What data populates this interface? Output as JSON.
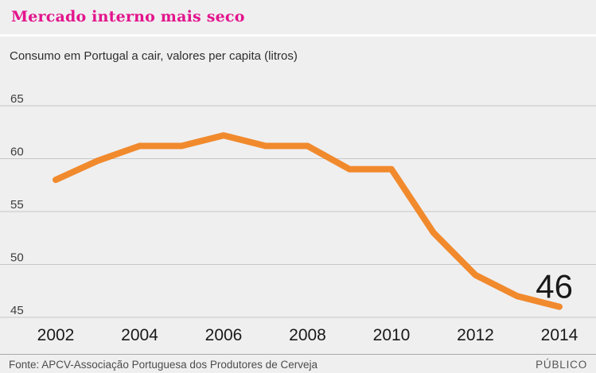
{
  "header": {
    "title": "Mercado interno mais seco",
    "subtitle": "Consumo em Portugal a cair, valores per capita (litros)"
  },
  "chart_data": {
    "type": "line",
    "title": "Mercado interno mais seco",
    "subtitle": "Consumo em Portugal a cair, valores per capita (litros)",
    "series_name": "Consumo per capita (litros)",
    "x": [
      2002,
      2003,
      2004,
      2005,
      2006,
      2007,
      2008,
      2009,
      2010,
      2011,
      2012,
      2013,
      2014
    ],
    "values": [
      58,
      59.8,
      61.2,
      61.2,
      62.2,
      61.2,
      61.2,
      59,
      59,
      53,
      49,
      47,
      46
    ],
    "xticks": [
      2002,
      2004,
      2006,
      2008,
      2010,
      2012,
      2014
    ],
    "yticks": [
      45,
      50,
      55,
      60,
      65
    ],
    "xlim": [
      2002,
      2014
    ],
    "ylim": [
      44.5,
      65.5
    ],
    "grid": true,
    "legend": false,
    "line_color": "#f18a2d",
    "annotation": {
      "label": "46",
      "x": 2014,
      "y": 46
    }
  },
  "footer": {
    "source": "Fonte: APCV-Associação Portuguesa dos Produtores de Cerveja",
    "publisher": "PÚBLICO"
  },
  "colors": {
    "title_pink": "#e3148c",
    "line_orange": "#f18a2d",
    "background": "#efeff0",
    "gridline": "#c7c7c7"
  }
}
